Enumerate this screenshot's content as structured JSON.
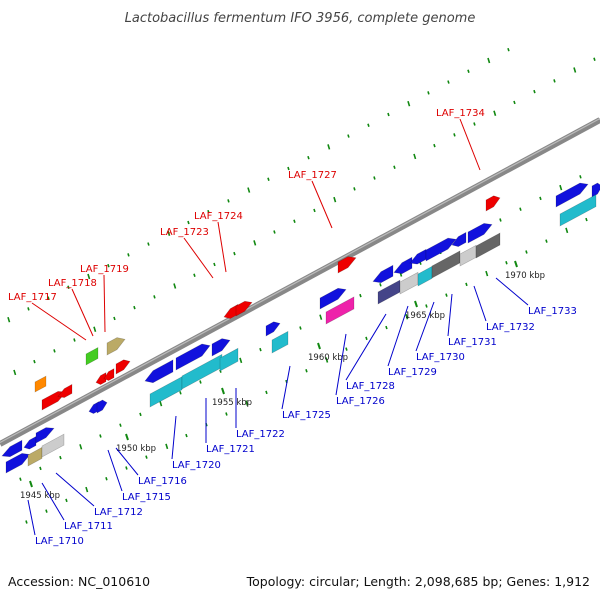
{
  "title": "Lactobacillus fermentum IFO 3956, complete genome",
  "footer": {
    "accession": "Accession: NC_010610",
    "summary": "Topology: circular; Length: 2,098,685 bp; Genes: 1,912"
  },
  "colors": {
    "top_label": "#dd0000",
    "bottom_label": "#0000cc",
    "backbone": "#888888",
    "tick": "#118811",
    "red": "#ee0000",
    "blue": "#1111dd",
    "cyan": "#22bbcc",
    "navy": "#444488",
    "magenta": "#ee22aa",
    "green": "#44cc22",
    "olive": "#bbaa66",
    "orange": "#ff8800",
    "light_gray": "#cccccc",
    "gray": "#888888",
    "dark_gray": "#666666"
  },
  "scale_labels": [
    "1945 kbp",
    "1950 kbp",
    "1955 kbp",
    "1960 kbp",
    "1965 kbp",
    "1970 kbp"
  ],
  "top_labels": [
    "LAF_1717",
    "LAF_1718",
    "LAF_1719",
    "LAF_1723",
    "LAF_1724",
    "LAF_1727",
    "LAF_1734"
  ],
  "bottom_labels": [
    "LAF_1710",
    "LAF_1711",
    "LAF_1712",
    "LAF_1715",
    "LAF_1716",
    "LAF_1720",
    "LAF_1721",
    "LAF_1722",
    "LAF_1725",
    "LAF_1726",
    "LAF_1728",
    "LAF_1729",
    "LAF_1730",
    "LAF_1731",
    "LAF_1732",
    "LAF_1733"
  ]
}
